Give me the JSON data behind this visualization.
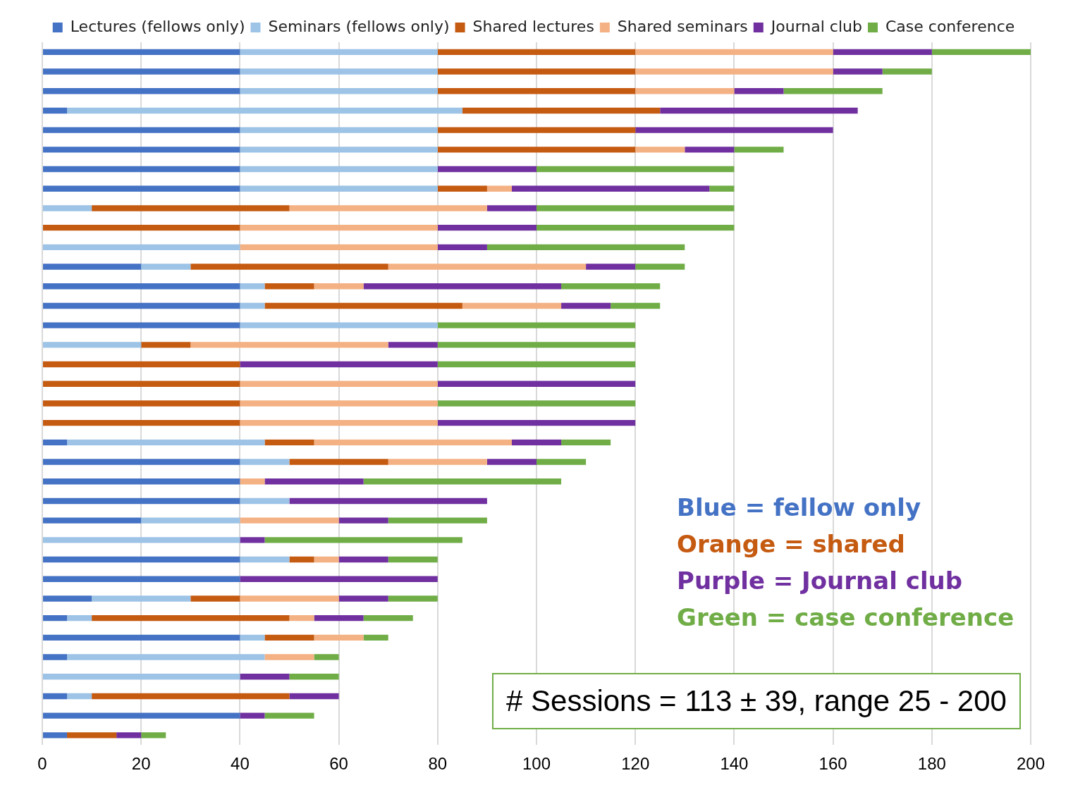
{
  "chart_data": {
    "type": "bar",
    "orientation": "horizontal",
    "stacked": true,
    "legend": "top",
    "grid": "x",
    "tick_labels": "x",
    "categories": [
      null,
      null,
      null,
      null,
      null,
      null,
      null,
      null,
      null,
      null,
      null,
      null,
      null,
      null,
      null,
      null,
      null,
      null,
      null,
      null,
      null,
      null,
      null,
      null,
      null,
      null,
      null,
      null,
      null,
      null,
      null,
      null,
      null,
      null,
      null,
      null
    ],
    "xlim": [
      0,
      200
    ],
    "xticks": [
      0,
      20,
      40,
      60,
      80,
      100,
      120,
      140,
      160,
      180,
      200
    ],
    "series": [
      {
        "name": "Lectures (fellows only)",
        "color": "#4472c4",
        "values": [
          40,
          40,
          40,
          5,
          40,
          40,
          40,
          40,
          0,
          0,
          0,
          20,
          40,
          40,
          40,
          0,
          0,
          0,
          0,
          0,
          5,
          40,
          40,
          40,
          20,
          0,
          40,
          40,
          10,
          5,
          40,
          5,
          0,
          5,
          40,
          5
        ]
      },
      {
        "name": "Seminars (fellows only)",
        "color": "#9dc3e6",
        "values": [
          40,
          40,
          40,
          80,
          40,
          40,
          40,
          40,
          10,
          0,
          40,
          10,
          5,
          5,
          40,
          20,
          0,
          0,
          0,
          0,
          40,
          10,
          0,
          10,
          20,
          40,
          10,
          0,
          20,
          5,
          5,
          40,
          40,
          5,
          0,
          0
        ]
      },
      {
        "name": "Shared lectures",
        "color": "#c55a11",
        "values": [
          40,
          40,
          40,
          40,
          40,
          40,
          0,
          10,
          40,
          40,
          0,
          40,
          10,
          40,
          0,
          10,
          40,
          40,
          40,
          40,
          10,
          20,
          0,
          0,
          0,
          0,
          5,
          0,
          10,
          40,
          10,
          0,
          0,
          40,
          0,
          10
        ]
      },
      {
        "name": "Shared seminars",
        "color": "#f4b183",
        "values": [
          40,
          40,
          20,
          0,
          0,
          10,
          0,
          5,
          40,
          40,
          40,
          40,
          10,
          20,
          0,
          40,
          0,
          40,
          40,
          40,
          40,
          20,
          5,
          0,
          20,
          0,
          5,
          0,
          20,
          5,
          10,
          10,
          0,
          0,
          0,
          0
        ]
      },
      {
        "name": "Journal club",
        "color": "#7030a0",
        "values": [
          20,
          10,
          10,
          40,
          40,
          10,
          20,
          40,
          10,
          20,
          10,
          10,
          40,
          10,
          0,
          10,
          40,
          40,
          0,
          40,
          10,
          10,
          20,
          40,
          10,
          5,
          10,
          40,
          10,
          10,
          0,
          0,
          10,
          10,
          5,
          5
        ]
      },
      {
        "name": "Case conference",
        "color": "#70ad47",
        "values": [
          20,
          10,
          20,
          0,
          0,
          10,
          40,
          5,
          40,
          40,
          40,
          10,
          20,
          10,
          40,
          40,
          40,
          0,
          40,
          0,
          10,
          10,
          40,
          0,
          20,
          40,
          10,
          0,
          10,
          10,
          5,
          5,
          10,
          0,
          10,
          5
        ]
      }
    ],
    "annotations": [
      "Blue = fellow only",
      "Orange = shared",
      "Purple = Journal club",
      "Green = case conference",
      "# Sessions = 113 ± 39, range 25 - 200"
    ]
  }
}
